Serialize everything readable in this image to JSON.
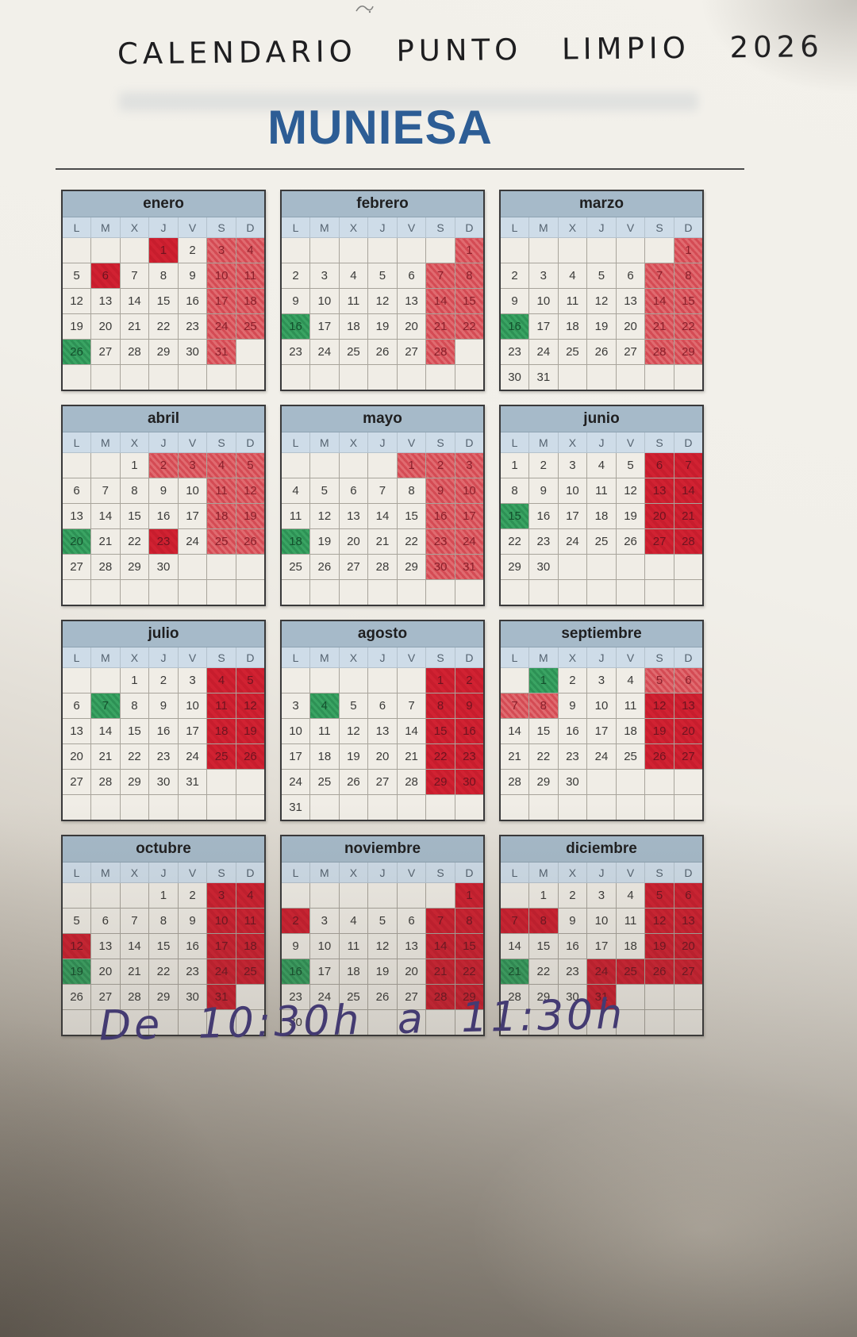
{
  "page": {
    "handwritten_title": "CALENDARIO PUNTO LIMPIO 2026",
    "town_title": "MUNIESA",
    "footer_note": "De 10:30h a 11:30h"
  },
  "colors": {
    "month_header_bg": "#a6bac9",
    "weekday_row_bg": "#cedce8",
    "holiday_red": "#cf1f30",
    "holiday_red_light": "#dd6168",
    "collection_green": "#2f9e5c",
    "town_title_blue": "#2d5d95",
    "footer_ink": "#433a7e"
  },
  "calendar": {
    "day_headers": [
      "L",
      "M",
      "X",
      "J",
      "V",
      "S",
      "D"
    ],
    "months": [
      {
        "name": "enero",
        "weeks": [
          [
            "",
            "",
            "",
            "1R",
            "2",
            "3r",
            "4r"
          ],
          [
            "5",
            "6R",
            "7",
            "8",
            "9",
            "10r",
            "11r"
          ],
          [
            "12",
            "13",
            "14",
            "15",
            "16",
            "17r",
            "18r"
          ],
          [
            "19",
            "20",
            "21",
            "22",
            "23",
            "24r",
            "25r"
          ],
          [
            "26G",
            "27",
            "28",
            "29",
            "30",
            "31r",
            ""
          ],
          [
            "",
            "",
            "",
            "",
            "",
            "",
            ""
          ]
        ]
      },
      {
        "name": "febrero",
        "weeks": [
          [
            "",
            "",
            "",
            "",
            "",
            "",
            "1r"
          ],
          [
            "2",
            "3",
            "4",
            "5",
            "6",
            "7r",
            "8r"
          ],
          [
            "9",
            "10",
            "11",
            "12",
            "13",
            "14r",
            "15r"
          ],
          [
            "16G",
            "17",
            "18",
            "19",
            "20",
            "21r",
            "22r"
          ],
          [
            "23",
            "24",
            "25",
            "26",
            "27",
            "28r",
            ""
          ],
          [
            "",
            "",
            "",
            "",
            "",
            "",
            ""
          ]
        ]
      },
      {
        "name": "marzo",
        "weeks": [
          [
            "",
            "",
            "",
            "",
            "",
            "",
            "1r"
          ],
          [
            "2",
            "3",
            "4",
            "5",
            "6",
            "7r",
            "8r"
          ],
          [
            "9",
            "10",
            "11",
            "12",
            "13",
            "14r",
            "15r"
          ],
          [
            "16G",
            "17",
            "18",
            "19",
            "20",
            "21r",
            "22r"
          ],
          [
            "23",
            "24",
            "25",
            "26",
            "27",
            "28r",
            "29r"
          ],
          [
            "30",
            "31",
            "",
            "",
            "",
            "",
            ""
          ]
        ]
      },
      {
        "name": "abril",
        "weeks": [
          [
            "",
            "",
            "1",
            "2r",
            "3r",
            "4r",
            "5r"
          ],
          [
            "6",
            "7",
            "8",
            "9",
            "10",
            "11r",
            "12r"
          ],
          [
            "13",
            "14",
            "15",
            "16",
            "17",
            "18r",
            "19r"
          ],
          [
            "20G",
            "21",
            "22",
            "23R",
            "24",
            "25r",
            "26r"
          ],
          [
            "27",
            "28",
            "29",
            "30",
            "",
            "",
            ""
          ],
          [
            "",
            "",
            "",
            "",
            "",
            "",
            ""
          ]
        ]
      },
      {
        "name": "mayo",
        "weeks": [
          [
            "",
            "",
            "",
            "",
            "1r",
            "2r",
            "3r"
          ],
          [
            "4",
            "5",
            "6",
            "7",
            "8",
            "9r",
            "10r"
          ],
          [
            "11",
            "12",
            "13",
            "14",
            "15",
            "16r",
            "17r"
          ],
          [
            "18G",
            "19",
            "20",
            "21",
            "22",
            "23r",
            "24r"
          ],
          [
            "25",
            "26",
            "27",
            "28",
            "29",
            "30r",
            "31r"
          ],
          [
            "",
            "",
            "",
            "",
            "",
            "",
            ""
          ]
        ]
      },
      {
        "name": "junio",
        "weeks": [
          [
            "1",
            "2",
            "3",
            "4",
            "5",
            "6R",
            "7R"
          ],
          [
            "8",
            "9",
            "10",
            "11",
            "12",
            "13R",
            "14R"
          ],
          [
            "15G",
            "16",
            "17",
            "18",
            "19",
            "20R",
            "21R"
          ],
          [
            "22",
            "23",
            "24",
            "25",
            "26",
            "27R",
            "28R"
          ],
          [
            "29",
            "30",
            "",
            "",
            "",
            "",
            ""
          ],
          [
            "",
            "",
            "",
            "",
            "",
            "",
            ""
          ]
        ]
      },
      {
        "name": "julio",
        "weeks": [
          [
            "",
            "",
            "1",
            "2",
            "3",
            "4R",
            "5R"
          ],
          [
            "6",
            "7G",
            "8",
            "9",
            "10",
            "11R",
            "12R"
          ],
          [
            "13",
            "14",
            "15",
            "16",
            "17",
            "18R",
            "19R"
          ],
          [
            "20",
            "21",
            "22",
            "23",
            "24",
            "25R",
            "26R"
          ],
          [
            "27",
            "28",
            "29",
            "30",
            "31",
            "",
            ""
          ],
          [
            "",
            "",
            "",
            "",
            "",
            "",
            ""
          ]
        ]
      },
      {
        "name": "agosto",
        "weeks": [
          [
            "",
            "",
            "",
            "",
            "",
            "1R",
            "2R"
          ],
          [
            "3",
            "4G",
            "5",
            "6",
            "7",
            "8R",
            "9R"
          ],
          [
            "10",
            "11",
            "12",
            "13",
            "14",
            "15R",
            "16R"
          ],
          [
            "17",
            "18",
            "19",
            "20",
            "21",
            "22R",
            "23R"
          ],
          [
            "24",
            "25",
            "26",
            "27",
            "28",
            "29R",
            "30R"
          ],
          [
            "31",
            "",
            "",
            "",
            "",
            "",
            ""
          ]
        ]
      },
      {
        "name": "septiembre",
        "weeks": [
          [
            "",
            "1G",
            "2",
            "3",
            "4",
            "5r",
            "6r"
          ],
          [
            "7r",
            "8r",
            "9",
            "10",
            "11",
            "12R",
            "13R"
          ],
          [
            "14",
            "15",
            "16",
            "17",
            "18",
            "19R",
            "20R"
          ],
          [
            "21",
            "22",
            "23",
            "24",
            "25",
            "26R",
            "27R"
          ],
          [
            "28",
            "29",
            "30",
            "",
            "",
            "",
            ""
          ],
          [
            "",
            "",
            "",
            "",
            "",
            "",
            ""
          ]
        ]
      },
      {
        "name": "octubre",
        "weeks": [
          [
            "",
            "",
            "",
            "1",
            "2",
            "3R",
            "4R"
          ],
          [
            "5",
            "6",
            "7",
            "8",
            "9",
            "10R",
            "11R"
          ],
          [
            "12R",
            "13",
            "14",
            "15",
            "16",
            "17R",
            "18R"
          ],
          [
            "19G",
            "20",
            "21",
            "22",
            "23",
            "24R",
            "25R"
          ],
          [
            "26",
            "27",
            "28",
            "29",
            "30",
            "31R",
            ""
          ],
          [
            "",
            "",
            "",
            "",
            "",
            "",
            ""
          ]
        ]
      },
      {
        "name": "noviembre",
        "weeks": [
          [
            "",
            "",
            "",
            "",
            "",
            "",
            "1R"
          ],
          [
            "2R",
            "3",
            "4",
            "5",
            "6",
            "7R",
            "8R"
          ],
          [
            "9",
            "10",
            "11",
            "12",
            "13",
            "14R",
            "15R"
          ],
          [
            "16G",
            "17",
            "18",
            "19",
            "20",
            "21R",
            "22R"
          ],
          [
            "23",
            "24",
            "25",
            "26",
            "27",
            "28R",
            "29R"
          ],
          [
            "30",
            "",
            "",
            "",
            "",
            "",
            ""
          ]
        ]
      },
      {
        "name": "diciembre",
        "weeks": [
          [
            "",
            "1",
            "2",
            "3",
            "4",
            "5R",
            "6R"
          ],
          [
            "7R",
            "8R",
            "9",
            "10",
            "11",
            "12R",
            "13R"
          ],
          [
            "14",
            "15",
            "16",
            "17",
            "18",
            "19R",
            "20R"
          ],
          [
            "21G",
            "22",
            "23",
            "24R",
            "25R",
            "26R",
            "27R"
          ],
          [
            "28",
            "29",
            "30",
            "31R",
            "",
            "",
            ""
          ],
          [
            "",
            "",
            "",
            "",
            "",
            "",
            ""
          ]
        ]
      }
    ]
  }
}
